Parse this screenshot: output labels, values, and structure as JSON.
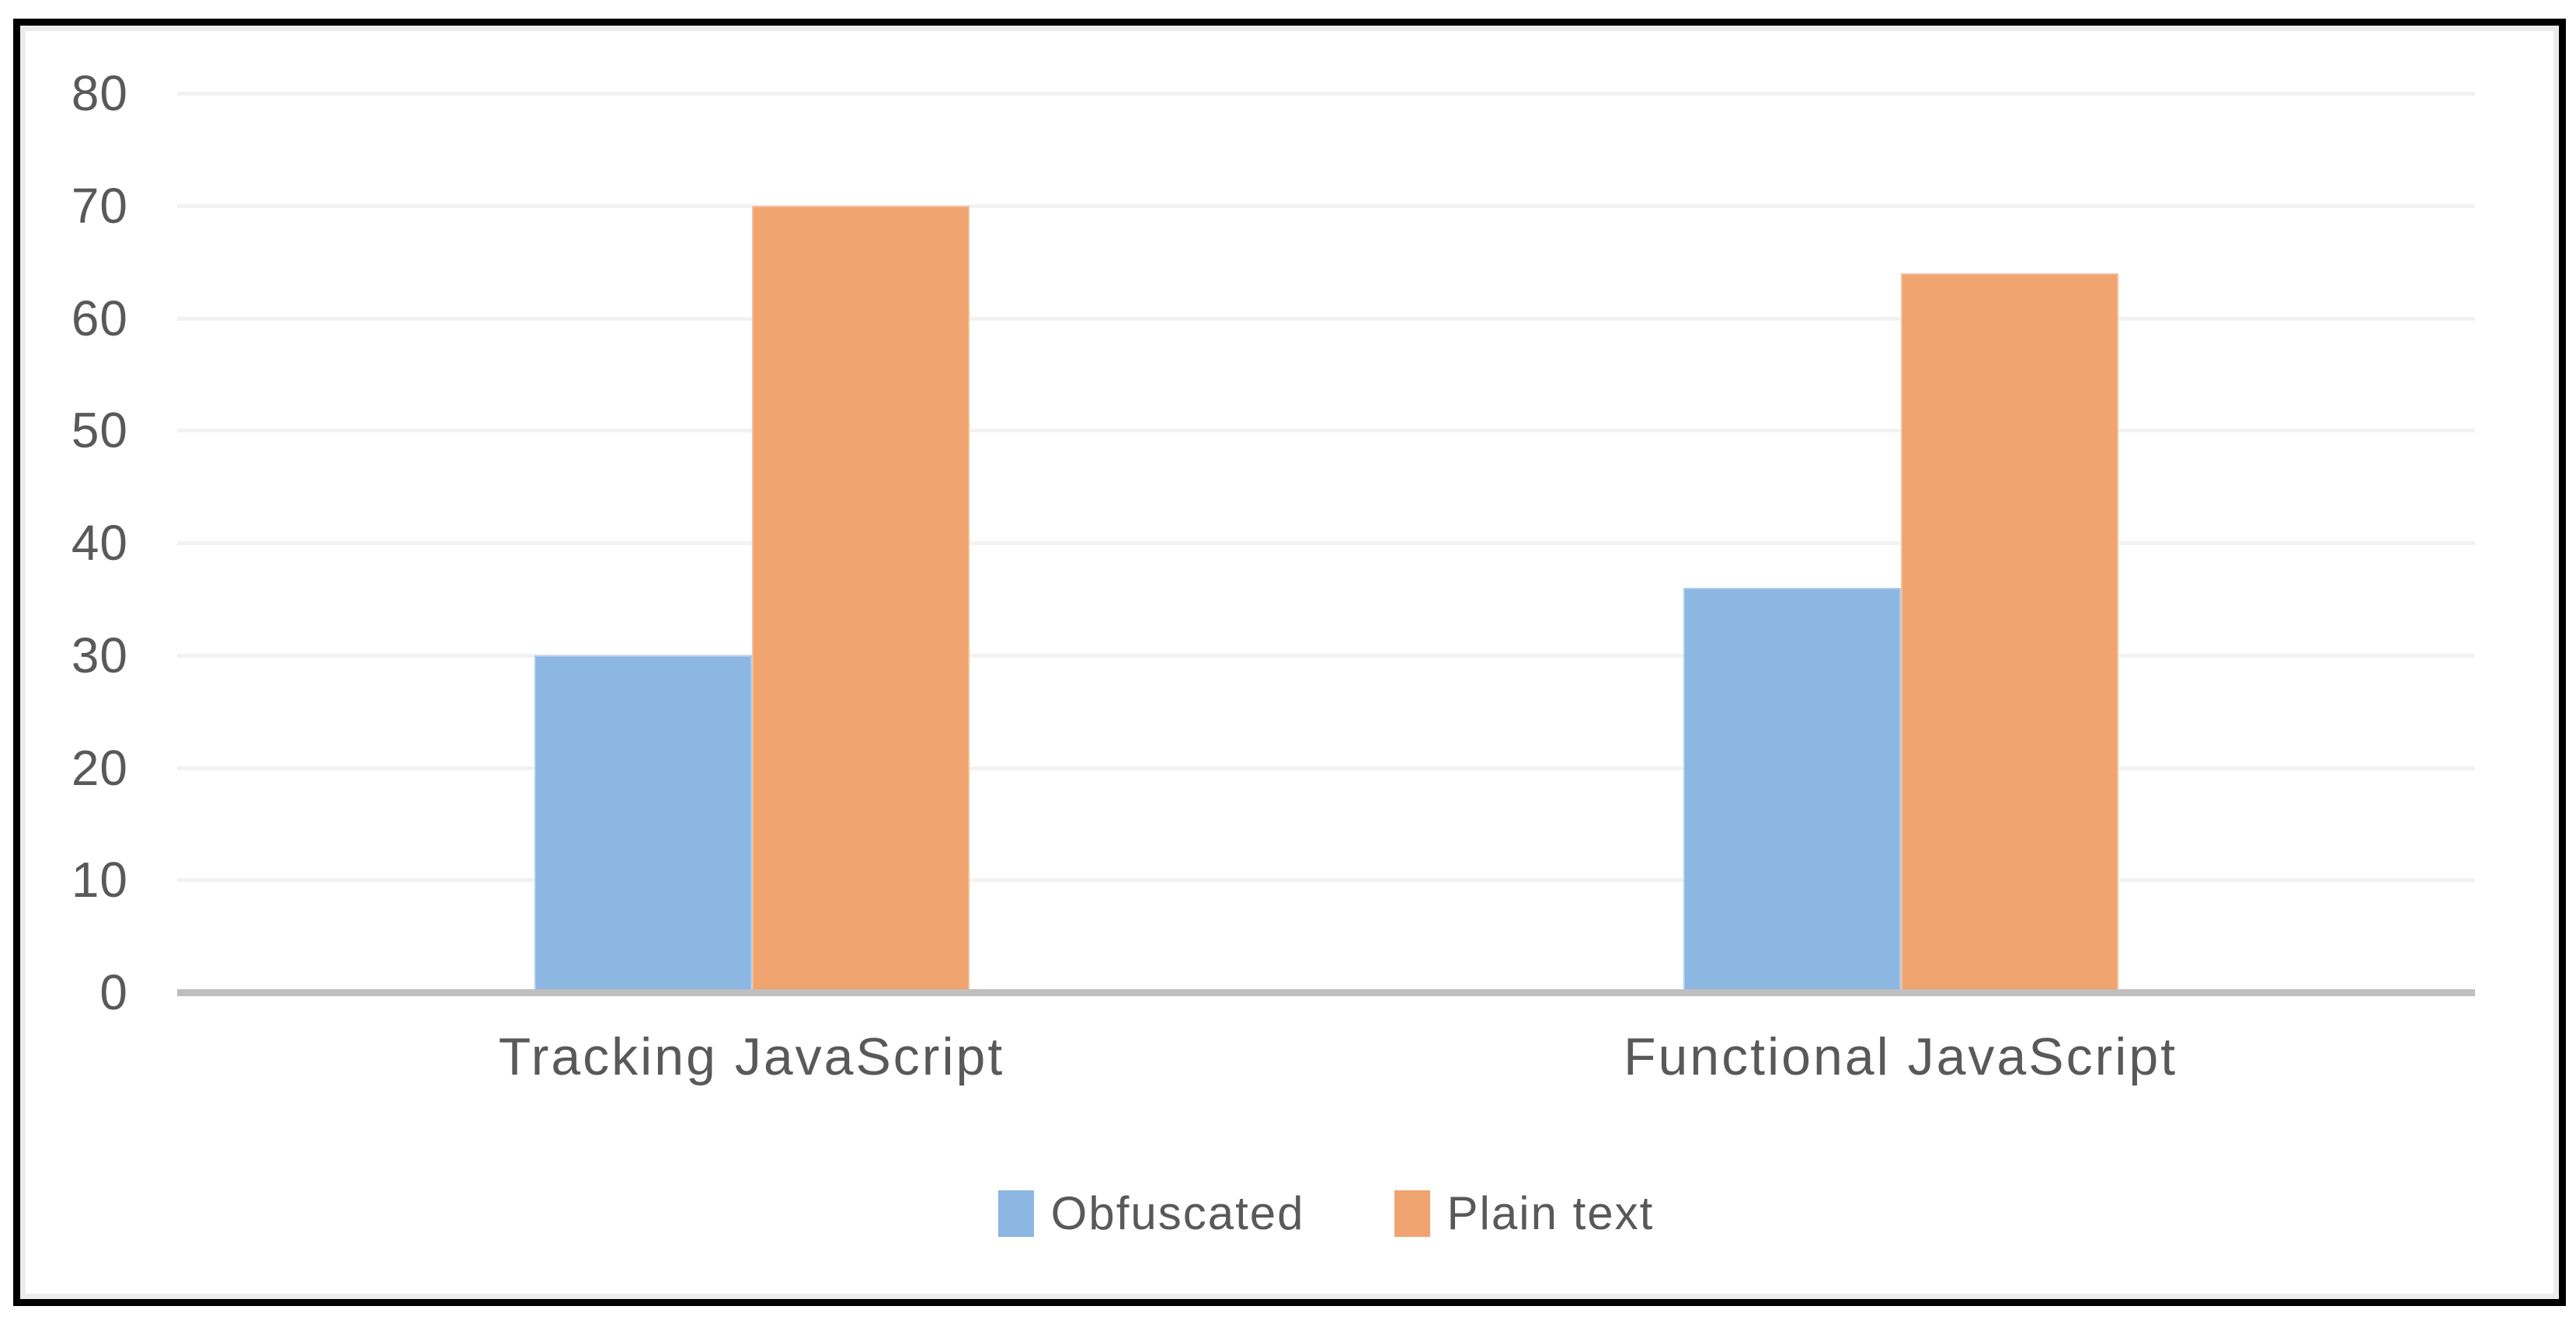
{
  "chart_data": {
    "type": "bar",
    "title": "",
    "xlabel": "",
    "ylabel": "",
    "categories": [
      "Tracking JavaScript",
      "Functional JavaScript"
    ],
    "series": [
      {
        "name": "Obfuscated",
        "color": "#8CB7E3",
        "values": [
          30,
          36
        ]
      },
      {
        "name": "Plain text",
        "color": "#F0A470",
        "values": [
          70,
          64
        ]
      }
    ],
    "y_axis": {
      "min": 0,
      "max": 80,
      "tick_interval": 10,
      "ticks": [
        0,
        10,
        20,
        30,
        40,
        50,
        60,
        70,
        80
      ]
    },
    "grid": true,
    "legend_position": "bottom-center",
    "colors": {
      "tick_text": "#595959",
      "category_text": "#595959",
      "legend_text": "#595959",
      "gridline": "#F2F2F2",
      "axis_line": "#BFBFBF",
      "border": "#000000",
      "background": "#FFFFFF"
    }
  }
}
